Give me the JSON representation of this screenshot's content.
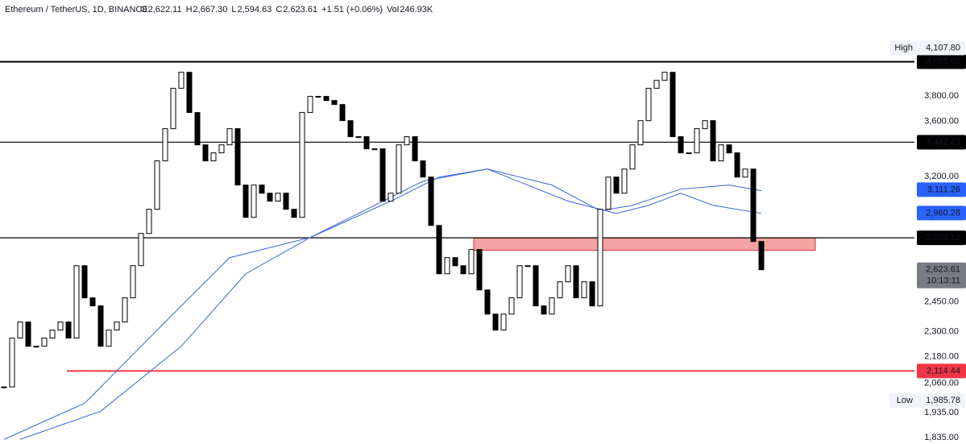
{
  "chart_data": {
    "type": "candlestick",
    "title": "Ethereum / TetherUS, 1D, BINANCE",
    "stats": [
      {
        "name": "O",
        "value": "2,622.11"
      },
      {
        "name": "H",
        "value": "2,667.30"
      },
      {
        "name": "L",
        "value": "2,594.63"
      },
      {
        "name": "C",
        "value": "2,623.61"
      },
      {
        "name": "",
        "value": "+1.51 (+0.06%)"
      },
      {
        "name": "Vol",
        "value": "246.93K"
      }
    ],
    "currency": "USDT",
    "log_scale": true,
    "ylim": [
      1810,
      4660
    ],
    "xlim": [
      -0.5,
      113
    ],
    "yticks": [
      {
        "value": 1835,
        "label": "1,835.00"
      },
      {
        "value": 1935,
        "label": "1,935.00"
      },
      {
        "value": 2060,
        "label": "2,060.00"
      },
      {
        "value": 2180,
        "label": "2,180.00"
      },
      {
        "value": 2300,
        "label": "2,300.00"
      },
      {
        "value": 2450,
        "label": "2,450.00"
      },
      {
        "value": 3200,
        "label": "3,200.00"
      },
      {
        "value": 3600,
        "label": "3,600.00"
      },
      {
        "value": 3800,
        "label": "3,800.00"
      }
    ],
    "close": [
      2044,
      2268,
      2347,
      2229,
      2229,
      2268,
      2307,
      2347,
      2268,
      2646,
      2471,
      2429,
      2229,
      2307,
      2347,
      2471,
      2646,
      2834,
      2984,
      3308,
      3543,
      3861,
      3995,
      3667,
      3423,
      3308,
      3365,
      3423,
      3543,
      3142,
      2933,
      3142,
      3088,
      3036,
      3088,
      2984,
      2933,
      3667,
      3795,
      3795,
      3762,
      3730,
      3604,
      3483,
      3483,
      3394,
      3394,
      3036,
      3088,
      3423,
      3483,
      3308,
      3196,
      2883,
      2601,
      2692,
      2646,
      2601,
      2739,
      2513,
      2387,
      2307,
      2387,
      2471,
      2646,
      2646,
      2429,
      2387,
      2471,
      2557,
      2646,
      2471,
      2557,
      2429,
      2984,
      3196,
      3088,
      3251,
      3423,
      3604,
      3861,
      3927,
      3995,
      3483,
      3365,
      3365,
      3543,
      3604,
      3308,
      3423,
      3365,
      3196,
      3251,
      2786,
      2623.61
    ],
    "up_color": "#ffffff",
    "down_color": "#000000",
    "moving_averages": [
      {
        "color": "#3a64d8",
        "x": [
          0,
          10,
          20,
          28,
          38,
          48,
          54,
          60,
          70,
          76,
          80,
          84,
          88,
          94
        ],
        "values": [
          1828,
          1974,
          2347,
          2692,
          2810,
          3036,
          3196,
          3251,
          3036,
          2958,
          3009,
          3088,
          3009,
          2958
        ],
        "last": {
          "value": 2960.28,
          "label": "2,960.28"
        }
      },
      {
        "color": "#3a64d8",
        "x": [
          2,
          12,
          22,
          30,
          38,
          44,
          52,
          60,
          68,
          74,
          78,
          84,
          90,
          94
        ],
        "values": [
          1828,
          1941,
          2229,
          2601,
          2810,
          2958,
          3168,
          3251,
          3142,
          2974,
          3009,
          3115,
          3142,
          3104
        ],
        "last": {
          "value": 3111.26,
          "label": "3,111.26"
        }
      }
    ],
    "levels": [
      {
        "value": 4085.68,
        "label": "4,085.68",
        "color": "#000000",
        "start": -0.5
      },
      {
        "value": 3442.45,
        "label": "3,442.45",
        "color": "#000000",
        "start": -0.5
      },
      {
        "value": 2808.12,
        "label": "2,808.12",
        "color": "#000000",
        "start": -0.5
      },
      {
        "value": 2114.44,
        "label": "2,114.44",
        "color": "#f23645",
        "start": 7.8
      }
    ],
    "zone": {
      "x": [
        58.3,
        100.7
      ],
      "low": 2734,
      "high": 2808.12,
      "color": "#f4a3a3"
    },
    "current": {
      "value": 2623.61,
      "label": "2,623.61",
      "countdown": "10:13:11"
    },
    "high": {
      "name": "High",
      "value": 4107.8,
      "label": "4,107.80"
    },
    "low": {
      "name": "Low",
      "value": 1985.78,
      "label": "1,985.78"
    }
  }
}
